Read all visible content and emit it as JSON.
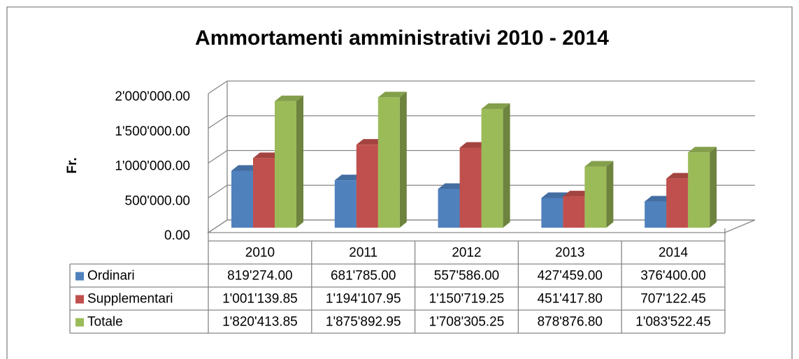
{
  "chart_data": {
    "type": "bar3d",
    "title": "Ammortamenti amministrativi 2010 - 2014",
    "y_label": "Fr.",
    "categories": [
      "2010",
      "2011",
      "2012",
      "2013",
      "2014"
    ],
    "series": [
      {
        "name": "Ordinari",
        "color": "#4f81bd",
        "values": [
          819274.0,
          681785.0,
          557586.0,
          427459.0,
          376400.0
        ],
        "value_labels": [
          "819'274.00",
          "681'785.00",
          "557'586.00",
          "427'459.00",
          "376'400.00"
        ]
      },
      {
        "name": "Supplementari",
        "color": "#c0504d",
        "values": [
          1001139.85,
          1194107.95,
          1150719.25,
          451417.8,
          707122.45
        ],
        "value_labels": [
          "1'001'139.85",
          "1'194'107.95",
          "1'150'719.25",
          "451'417.80",
          "707'122.45"
        ]
      },
      {
        "name": "Totale",
        "color": "#9bbb59",
        "values": [
          1820413.85,
          1875892.95,
          1708305.25,
          878876.8,
          1083522.45
        ],
        "value_labels": [
          "1'820'413.85",
          "1'875'892.95",
          "1'708'305.25",
          "878'876.80",
          "1'083'522.45"
        ]
      }
    ],
    "ylim": [
      0,
      2000000
    ],
    "yticks": [
      {
        "value": 0,
        "label": "0.00"
      },
      {
        "value": 500000,
        "label": "500'000.00"
      },
      {
        "value": 1000000,
        "label": "1'000'000.00"
      },
      {
        "value": 1500000,
        "label": "1'500'000.00"
      },
      {
        "value": 2000000,
        "label": "2'000'000.00"
      }
    ],
    "grid": true
  }
}
